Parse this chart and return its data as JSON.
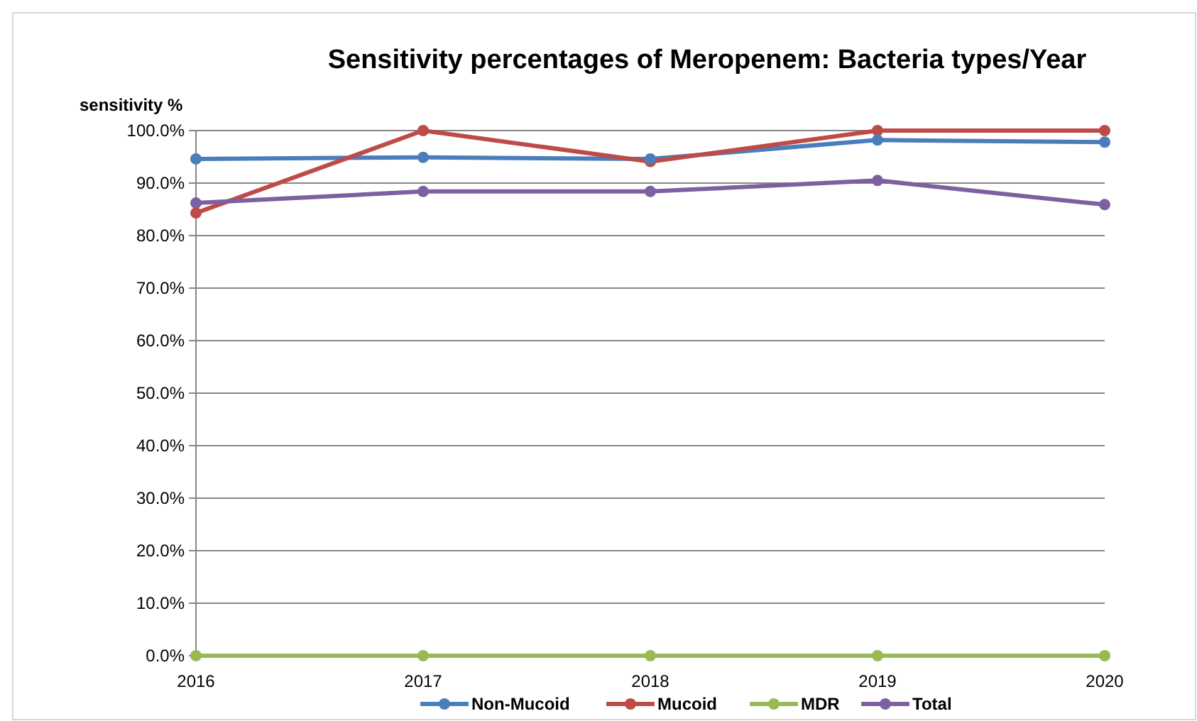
{
  "chart_data": {
    "type": "line",
    "title": "Sensitivity percentages of Meropenem: Bacteria types/Year",
    "ylabel": "sensitivity %",
    "categories": [
      "2016",
      "2017",
      "2018",
      "2019",
      "2020"
    ],
    "series": [
      {
        "name": "Non-Mucoid",
        "color": "#4a7ebb",
        "values": [
          94.6,
          94.9,
          94.6,
          98.2,
          97.8
        ]
      },
      {
        "name": "Mucoid",
        "color": "#be4b48",
        "values": [
          84.3,
          100,
          94.1,
          100,
          100
        ]
      },
      {
        "name": "MDR",
        "color": "#98b954",
        "values": [
          0,
          0,
          0,
          0,
          0
        ]
      },
      {
        "name": "Total",
        "color": "#7d60a0",
        "values": [
          86.2,
          88.4,
          88.4,
          90.5,
          85.9
        ]
      }
    ],
    "ylim": [
      0,
      100
    ],
    "yticks": [
      {
        "value": 0,
        "label": "0.0%"
      },
      {
        "value": 10,
        "label": "10.0%"
      },
      {
        "value": 20,
        "label": "20.0%"
      },
      {
        "value": 30,
        "label": "30.0%"
      },
      {
        "value": 40,
        "label": "40.0%"
      },
      {
        "value": 50,
        "label": "50.0%"
      },
      {
        "value": 60,
        "label": "60.0%"
      },
      {
        "value": 70,
        "label": "70.0%"
      },
      {
        "value": 80,
        "label": "80.0%"
      },
      {
        "value": 90,
        "label": "90.0%"
      },
      {
        "value": 100,
        "label": "100.0%"
      }
    ],
    "grid": "y",
    "legend": "bottom",
    "marker": "circle",
    "line_style": "solid"
  }
}
